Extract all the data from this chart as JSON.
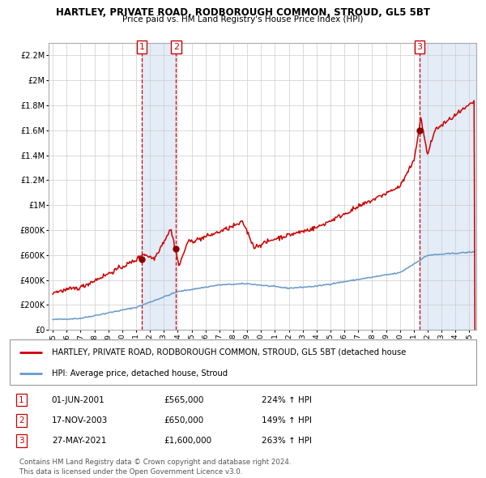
{
  "title": "HARTLEY, PRIVATE ROAD, RODBOROUGH COMMON, STROUD, GL5 5BT",
  "subtitle": "Price paid vs. HM Land Registry's House Price Index (HPI)",
  "ylim": [
    0,
    2300000
  ],
  "yticks": [
    0,
    200000,
    400000,
    600000,
    800000,
    1000000,
    1200000,
    1400000,
    1600000,
    1800000,
    2000000,
    2200000
  ],
  "ytick_labels": [
    "£0",
    "£200K",
    "£400K",
    "£600K",
    "£800K",
    "£1M",
    "£1.2M",
    "£1.4M",
    "£1.6M",
    "£1.8M",
    "£2M",
    "£2.2M"
  ],
  "xlim_start": 1994.7,
  "xlim_end": 2025.5,
  "xticks": [
    1995,
    1996,
    1997,
    1998,
    1999,
    2000,
    2001,
    2002,
    2003,
    2004,
    2005,
    2006,
    2007,
    2008,
    2009,
    2010,
    2011,
    2012,
    2013,
    2014,
    2015,
    2016,
    2017,
    2018,
    2019,
    2020,
    2021,
    2022,
    2023,
    2024,
    2025
  ],
  "sales": [
    {
      "num": 1,
      "date_label": "01-JUN-2001",
      "price": 565000,
      "pct": "224%",
      "date_x": 2001.42
    },
    {
      "num": 2,
      "date_label": "17-NOV-2003",
      "price": 650000,
      "pct": "149%",
      "date_x": 2003.88
    },
    {
      "num": 3,
      "date_label": "27-MAY-2021",
      "price": 1600000,
      "pct": "263%",
      "date_x": 2021.41
    }
  ],
  "sale_box_color": "#cc0000",
  "dashed_line_color": "#cc0000",
  "shade_color": "#dce8f5",
  "legend_line1": "HARTLEY, PRIVATE ROAD, RODBOROUGH COMMON, STROUD, GL5 5BT (detached house",
  "legend_line2": "HPI: Average price, detached house, Stroud",
  "hpi_color": "#6699cc",
  "price_color": "#cc0000",
  "footer1": "Contains HM Land Registry data © Crown copyright and database right 2024.",
  "footer2": "This data is licensed under the Open Government Licence v3.0."
}
